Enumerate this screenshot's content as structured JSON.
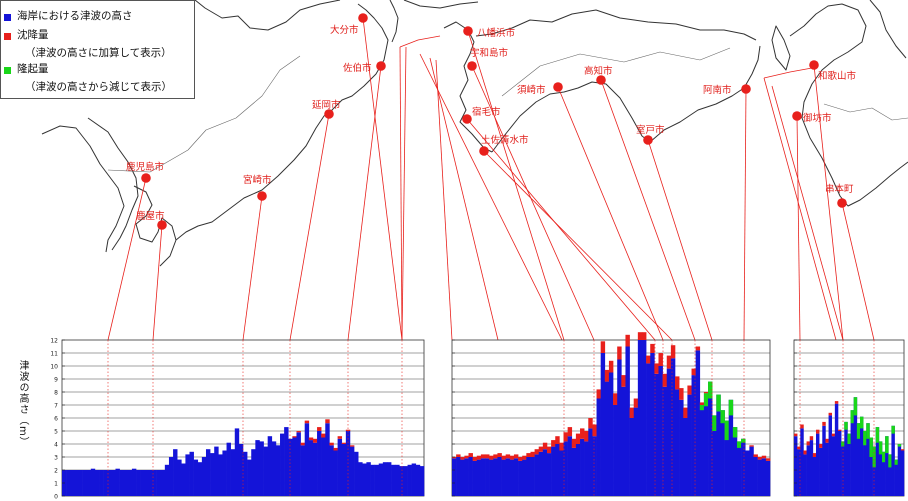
{
  "legend": {
    "items": [
      {
        "label": "海岸における津波の高さ",
        "color": "#1414d8"
      },
      {
        "label": "沈降量",
        "note": "（津波の高さに加算して表示）",
        "color": "#e8201c"
      },
      {
        "label": "隆起量",
        "note": "（津波の高さから減じて表示）",
        "color": "#19d619"
      }
    ]
  },
  "y_axis_label": "津波の高さ（m）",
  "cities": [
    {
      "name": "大分市"
    },
    {
      "name": "佐伯市"
    },
    {
      "name": "延岡市"
    },
    {
      "name": "宮崎市"
    },
    {
      "name": "鹿児島市"
    },
    {
      "name": "鹿屋市"
    },
    {
      "name": "八幡浜市"
    },
    {
      "name": "宇和島市"
    },
    {
      "name": "宿毛市"
    },
    {
      "name": "土佐清水市"
    },
    {
      "name": "須崎市"
    },
    {
      "name": "高知市"
    },
    {
      "name": "室戸市"
    },
    {
      "name": "阿南市"
    },
    {
      "name": "和歌山市"
    },
    {
      "name": "御坊市"
    },
    {
      "name": "串本町"
    }
  ],
  "chart_data": {
    "type": "area",
    "ylabel": "津波の高さ（m）",
    "ylim": [
      0,
      12
    ],
    "yticks": [
      0,
      1,
      2,
      3,
      4,
      5,
      6,
      7,
      8,
      9,
      10,
      11,
      12
    ],
    "grid": true,
    "panels": [
      {
        "name": "panel-kyushu",
        "tsunami_height": [
          2.0,
          2.0,
          2.0,
          2.0,
          2.0,
          2.0,
          2.0,
          2.1,
          2.0,
          2.0,
          2.0,
          2.0,
          2.0,
          2.1,
          2.0,
          2.0,
          2.0,
          2.1,
          2.0,
          2.0,
          2.0,
          2.0,
          2.0,
          2.0,
          2.0,
          2.4,
          3.0,
          3.6,
          2.8,
          2.5,
          3.2,
          3.4,
          2.8,
          2.6,
          3.0,
          3.6,
          3.3,
          3.8,
          3.2,
          3.5,
          4.1,
          3.6,
          5.2,
          4.0,
          3.4,
          2.8,
          3.6,
          4.3,
          4.2,
          3.8,
          4.6,
          4.2,
          3.9,
          4.8,
          5.3,
          4.4,
          4.5,
          4.9,
          3.9,
          5.6,
          4.3,
          4.1,
          5.0,
          4.5,
          5.6,
          3.9,
          3.5,
          4.4,
          4.0,
          5.0,
          3.8,
          3.4,
          2.6,
          2.5,
          2.6,
          2.4,
          2.4,
          2.5,
          2.6,
          2.6,
          2.4,
          2.4,
          2.3,
          2.3,
          2.4,
          2.5,
          2.4,
          2.3
        ],
        "subsidence": [
          0,
          0,
          0,
          0,
          0,
          0,
          0,
          0,
          0,
          0,
          0,
          0,
          0,
          0,
          0,
          0,
          0,
          0,
          0,
          0,
          0,
          0,
          0,
          0,
          0,
          0,
          0,
          0,
          0,
          0,
          0,
          0,
          0,
          0,
          0,
          0,
          0,
          0,
          0,
          0,
          0,
          0,
          0,
          0,
          0,
          0,
          0,
          0,
          0,
          0,
          0,
          0,
          0,
          0,
          0,
          0,
          0.1,
          0.1,
          0.2,
          0.2,
          0.2,
          0.3,
          0.3,
          0.3,
          0.3,
          0.2,
          0.2,
          0.2,
          0.1,
          0.1,
          0.1,
          0,
          0,
          0,
          0,
          0,
          0,
          0,
          0,
          0,
          0,
          0,
          0,
          0,
          0,
          0,
          0,
          0
        ],
        "uplift": [
          0,
          0,
          0,
          0,
          0,
          0,
          0,
          0,
          0,
          0,
          0,
          0,
          0,
          0,
          0,
          0,
          0,
          0,
          0,
          0,
          0,
          0,
          0,
          0,
          0,
          0,
          0,
          0,
          0,
          0,
          0,
          0,
          0,
          0,
          0,
          0,
          0,
          0,
          0,
          0,
          0,
          0,
          0,
          0,
          0,
          0,
          0,
          0,
          0,
          0,
          0,
          0,
          0,
          0,
          0,
          0,
          0,
          0,
          0,
          0,
          0,
          0,
          0,
          0,
          0,
          0,
          0,
          0,
          0,
          0,
          0,
          0,
          0,
          0,
          0,
          0,
          0,
          0,
          0,
          0,
          0,
          0,
          0,
          0,
          0,
          0,
          0,
          0
        ]
      },
      {
        "name": "panel-shikoku",
        "tsunami_height": [
          2.9,
          3.0,
          2.8,
          2.9,
          3.0,
          2.7,
          2.8,
          2.9,
          2.9,
          2.8,
          2.9,
          3.0,
          2.8,
          2.9,
          2.8,
          2.9,
          2.7,
          2.8,
          3.0,
          3.0,
          3.2,
          3.4,
          3.6,
          3.3,
          3.8,
          4.0,
          3.5,
          4.2,
          4.6,
          3.7,
          4.0,
          4.4,
          4.2,
          5.2,
          4.6,
          7.5,
          11.0,
          8.8,
          9.5,
          7.0,
          10.5,
          8.4,
          11.5,
          6.0,
          6.8,
          12.0,
          12.0,
          10.2,
          11.0,
          9.4,
          10.0,
          8.4,
          9.8,
          10.6,
          8.2,
          7.4,
          6.0,
          7.8,
          9.3,
          11.2,
          7.0,
          7.9,
          8.8,
          6.2,
          7.8,
          6.6,
          5.8,
          7.4,
          5.3,
          4.2,
          4.4,
          3.5,
          3.8,
          3.0,
          2.8,
          2.9,
          2.7
        ],
        "subsidence": [
          0.1,
          0.2,
          0.2,
          0.2,
          0.3,
          0.3,
          0.3,
          0.3,
          0.3,
          0.3,
          0.3,
          0.3,
          0.3,
          0.3,
          0.3,
          0.3,
          0.3,
          0.3,
          0.3,
          0.4,
          0.4,
          0.4,
          0.5,
          0.5,
          0.5,
          0.6,
          0.6,
          0.7,
          0.7,
          0.7,
          0.8,
          0.8,
          0.8,
          0.8,
          0.9,
          0.7,
          0.9,
          0.9,
          0.9,
          0.9,
          1.0,
          0.9,
          0.9,
          0.8,
          0.7,
          0.6,
          0.6,
          0.6,
          0.7,
          0.8,
          1.0,
          1.0,
          1.0,
          1.0,
          1.0,
          0.9,
          0.8,
          0.7,
          0.5,
          0.3,
          0.2,
          0.1,
          0,
          0,
          0,
          0,
          0,
          0,
          0,
          0,
          0,
          0,
          0.1,
          0.2,
          0.2,
          0.2,
          0.2
        ],
        "uplift": [
          0,
          0,
          0,
          0,
          0,
          0,
          0,
          0,
          0,
          0,
          0,
          0,
          0,
          0,
          0,
          0,
          0,
          0,
          0,
          0,
          0,
          0,
          0,
          0,
          0,
          0,
          0,
          0,
          0,
          0,
          0,
          0,
          0,
          0,
          0,
          0,
          0,
          0,
          0,
          0,
          0,
          0,
          0,
          0,
          0,
          0,
          0,
          0,
          0,
          0,
          0,
          0,
          0,
          0,
          0,
          0,
          0,
          0,
          0,
          0,
          0.4,
          1.0,
          1.3,
          1.2,
          1.3,
          1.0,
          1.5,
          1.2,
          0.8,
          0.5,
          0.3,
          0,
          0,
          0,
          0,
          0,
          0
        ]
      },
      {
        "name": "panel-kii",
        "tsunami_height": [
          4.6,
          3.6,
          5.2,
          3.2,
          3.9,
          4.3,
          3.0,
          4.8,
          3.7,
          5.4,
          4.1,
          6.2,
          4.6,
          7.1,
          5.0,
          4.2,
          5.7,
          4.8,
          6.6,
          7.6,
          5.6,
          6.1,
          5.0,
          5.6,
          4.5,
          3.8,
          5.3,
          4.2,
          3.4,
          4.6,
          3.2,
          5.4,
          2.8,
          4.0,
          3.5
        ],
        "subsidence": [
          0.2,
          0.2,
          0.3,
          0.3,
          0.3,
          0.3,
          0.3,
          0.3,
          0.3,
          0.3,
          0.3,
          0.2,
          0.2,
          0.2,
          0.1,
          0,
          0,
          0,
          0,
          0,
          0,
          0,
          0,
          0,
          0,
          0,
          0,
          0,
          0,
          0,
          0,
          0,
          0,
          0,
          0.1
        ],
        "uplift": [
          0,
          0,
          0,
          0,
          0,
          0,
          0,
          0,
          0,
          0,
          0,
          0,
          0,
          0,
          0,
          0.4,
          0.6,
          0.8,
          1.0,
          1.4,
          1.2,
          0.9,
          1.1,
          1.2,
          1.5,
          1.6,
          1.2,
          1.0,
          0.8,
          1.3,
          1.0,
          0.6,
          0.4,
          0.2,
          0
        ]
      }
    ]
  }
}
